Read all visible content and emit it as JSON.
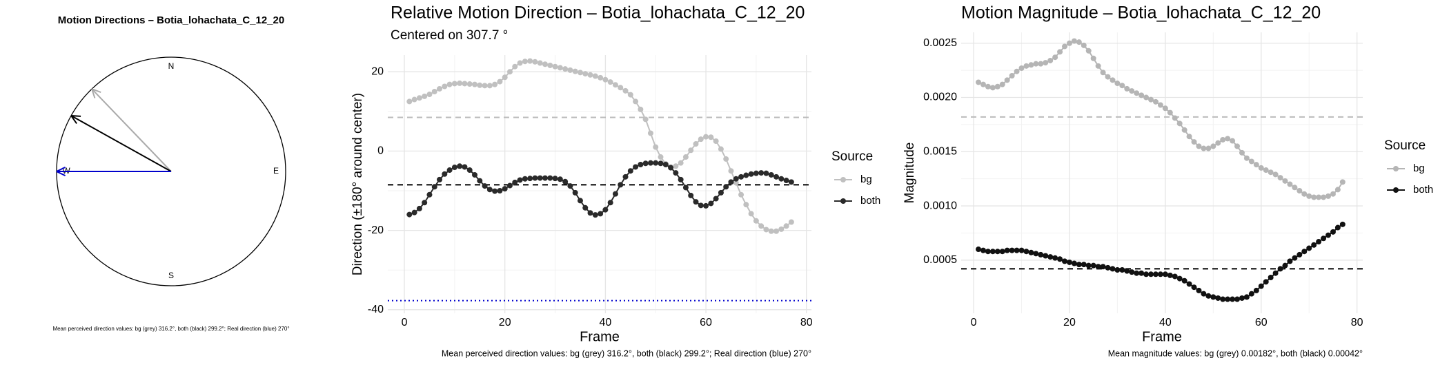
{
  "chart_data": [
    {
      "type": "compass",
      "title": "Motion Directions – Botia_lohachata_C_12_20",
      "labels": [
        "N",
        "E",
        "S",
        "W"
      ],
      "arrows": [
        {
          "angle": 316.2,
          "color": "#aaaaaa"
        },
        {
          "angle": 299.2,
          "color": "#000000"
        },
        {
          "angle": 270,
          "color": "#0000cc"
        }
      ],
      "caption": "Mean perceived direction values: bg (grey) 316.2°, both (black) 299.2°; Real direction (blue) 270°"
    },
    {
      "type": "line",
      "title": "Relative Motion Direction – Botia_lohachata_C_12_20",
      "subtitle": "Centered on  307.7 °",
      "xlabel": "Frame",
      "ylabel": "Direction (±180° around center)",
      "legend_title": "Source",
      "caption": "Mean perceived direction values: bg (grey) 316.2°, both (black) 299.2°; Real direction (blue) 270°",
      "xlim": [
        -3.3,
        81
      ],
      "xticks": [
        0,
        20,
        40,
        60,
        80
      ],
      "ylim": [
        -40.9,
        24.2
      ],
      "yticks": [
        -40,
        -20,
        0,
        20
      ],
      "grid": true,
      "x": [
        1,
        2,
        3,
        4,
        5,
        6,
        7,
        8,
        9,
        10,
        11,
        12,
        13,
        14,
        15,
        16,
        17,
        18,
        19,
        20,
        21,
        22,
        23,
        24,
        25,
        26,
        27,
        28,
        29,
        30,
        31,
        32,
        33,
        34,
        35,
        36,
        37,
        38,
        39,
        40,
        41,
        42,
        43,
        44,
        45,
        46,
        47,
        48,
        49,
        50,
        51,
        52,
        53,
        54,
        55,
        56,
        57,
        58,
        59,
        60,
        61,
        62,
        63,
        64,
        65,
        66,
        67,
        68,
        69,
        70,
        71,
        72,
        73,
        74,
        75,
        76,
        77
      ],
      "series": [
        {
          "name": "bg",
          "color": "#c0c0c0",
          "values": [
            12.5,
            13,
            13.4,
            13.8,
            14.3,
            15,
            15.7,
            16.3,
            16.8,
            17,
            17.1,
            17,
            16.9,
            16.8,
            16.6,
            16.5,
            16.5,
            16.8,
            17.5,
            18.6,
            20,
            21.3,
            22.2,
            22.6,
            22.7,
            22.5,
            22.2,
            21.9,
            21.6,
            21.3,
            21,
            20.7,
            20.4,
            20.1,
            19.8,
            19.5,
            19.2,
            18.9,
            18.5,
            18,
            17.4,
            16.7,
            16,
            15.2,
            14.2,
            12.5,
            10.5,
            8,
            4.5,
            1,
            -1.5,
            -3.2,
            -4,
            -3.8,
            -3,
            -1.5,
            0.2,
            1.8,
            3,
            3.6,
            3.5,
            2.5,
            0.5,
            -2,
            -5,
            -8,
            -11,
            -13.5,
            -15.8,
            -17.6,
            -18.9,
            -19.8,
            -20.2,
            -20.2,
            -19.7,
            -18.9,
            -17.9
          ]
        },
        {
          "name": "both",
          "color": "#2a2a2a",
          "values": [
            -16,
            -15.5,
            -14.5,
            -13,
            -11,
            -9,
            -7.2,
            -5.8,
            -4.8,
            -4.1,
            -3.8,
            -4,
            -4.8,
            -6,
            -7.5,
            -8.8,
            -9.7,
            -10.1,
            -10,
            -9.5,
            -8.7,
            -7.9,
            -7.3,
            -7,
            -6.9,
            -6.8,
            -6.8,
            -6.8,
            -6.8,
            -6.9,
            -7.1,
            -7.7,
            -8.8,
            -10.5,
            -12.5,
            -14.3,
            -15.6,
            -16.1,
            -15.8,
            -14.8,
            -13,
            -10.8,
            -8.5,
            -6.5,
            -5,
            -4,
            -3.4,
            -3.1,
            -3,
            -3,
            -3.1,
            -3.4,
            -4.2,
            -5.5,
            -7.2,
            -9.2,
            -11.2,
            -12.8,
            -13.7,
            -13.8,
            -13.2,
            -12,
            -10.5,
            -9,
            -7.8,
            -7,
            -6.5,
            -6.1,
            -5.8,
            -5.6,
            -5.5,
            -5.6,
            -6,
            -6.5,
            -7,
            -7.4,
            -7.8
          ]
        }
      ],
      "hlines": [
        {
          "value": 8.5,
          "color": "#bbbbbb",
          "style": "dashed"
        },
        {
          "value": -8.5,
          "color": "#000000",
          "style": "dashed"
        },
        {
          "value": -37.7,
          "color": "#0000cc",
          "style": "dotted"
        }
      ]
    },
    {
      "type": "line",
      "title": "Motion Magnitude – Botia_lohachata_C_12_20",
      "xlabel": "Frame",
      "ylabel": "Magnitude",
      "legend_title": "Source",
      "caption": "Mean magnitude values: bg (grey) 0.00182°, both (black) 0.00042°",
      "xlim": [
        -2.6,
        81.2
      ],
      "xticks": [
        0,
        20,
        40,
        60,
        80
      ],
      "ylim": [
        1e-05,
        0.0026
      ],
      "yticks": [
        0.0005,
        {
          "value": 0.001,
          "label": "0.0010"
        },
        0.0015,
        {
          "value": 0.002,
          "label": "0.0020"
        },
        0.0025
      ],
      "grid": true,
      "x": [
        1,
        2,
        3,
        4,
        5,
        6,
        7,
        8,
        9,
        10,
        11,
        12,
        13,
        14,
        15,
        16,
        17,
        18,
        19,
        20,
        21,
        22,
        23,
        24,
        25,
        26,
        27,
        28,
        29,
        30,
        31,
        32,
        33,
        34,
        35,
        36,
        37,
        38,
        39,
        40,
        41,
        42,
        43,
        44,
        45,
        46,
        47,
        48,
        49,
        50,
        51,
        52,
        53,
        54,
        55,
        56,
        57,
        58,
        59,
        60,
        61,
        62,
        63,
        64,
        65,
        66,
        67,
        68,
        69,
        70,
        71,
        72,
        73,
        74,
        75,
        76,
        77
      ],
      "series": [
        {
          "name": "bg",
          "color": "#b5b5b5",
          "values": [
            0.00214,
            0.00212,
            0.0021,
            0.00209,
            0.0021,
            0.00212,
            0.00216,
            0.0022,
            0.00224,
            0.00227,
            0.00229,
            0.0023,
            0.00231,
            0.00231,
            0.00232,
            0.00234,
            0.00237,
            0.00242,
            0.00247,
            0.0025,
            0.00252,
            0.00251,
            0.00248,
            0.00243,
            0.00236,
            0.00229,
            0.00223,
            0.00219,
            0.00216,
            0.00213,
            0.00211,
            0.00208,
            0.00206,
            0.00204,
            0.00202,
            0.002,
            0.00198,
            0.00196,
            0.00193,
            0.0019,
            0.00186,
            0.00181,
            0.00176,
            0.0017,
            0.00164,
            0.00159,
            0.00155,
            0.00153,
            0.00153,
            0.00155,
            0.00158,
            0.00161,
            0.00162,
            0.0016,
            0.00155,
            0.00149,
            0.00144,
            0.00141,
            0.00138,
            0.00135,
            0.00133,
            0.00131,
            0.00129,
            0.00126,
            0.00123,
            0.0012,
            0.00117,
            0.00114,
            0.00111,
            0.00109,
            0.00108,
            0.00108,
            0.00108,
            0.00109,
            0.00111,
            0.00115,
            0.00122
          ]
        },
        {
          "name": "both",
          "color": "#111111",
          "values": [
            0.0006,
            0.00059,
            0.00058,
            0.00058,
            0.00058,
            0.00058,
            0.00059,
            0.00059,
            0.00059,
            0.00059,
            0.00058,
            0.00057,
            0.00056,
            0.00055,
            0.00054,
            0.00053,
            0.00052,
            0.00051,
            0.00049,
            0.00048,
            0.00047,
            0.00046,
            0.00046,
            0.00045,
            0.00045,
            0.00044,
            0.00044,
            0.00043,
            0.00042,
            0.00041,
            0.00041,
            0.0004,
            0.00039,
            0.00038,
            0.00038,
            0.00037,
            0.00037,
            0.00037,
            0.00037,
            0.00037,
            0.00036,
            0.00035,
            0.00033,
            0.00031,
            0.00028,
            0.00025,
            0.00022,
            0.00019,
            0.00017,
            0.00016,
            0.00015,
            0.00014,
            0.00014,
            0.00014,
            0.00014,
            0.00015,
            0.00016,
            0.00019,
            0.00022,
            0.00026,
            0.0003,
            0.00034,
            0.00038,
            0.00042,
            0.00045,
            0.00049,
            0.00052,
            0.00055,
            0.00058,
            0.00061,
            0.00064,
            0.00067,
            0.0007,
            0.00073,
            0.00076,
            0.0008,
            0.00083
          ]
        }
      ],
      "hlines": [
        {
          "value": 0.00182,
          "color": "#bbbbbb",
          "style": "dashed"
        },
        {
          "value": 0.00042,
          "color": "#000000",
          "style": "dashed"
        }
      ]
    }
  ]
}
